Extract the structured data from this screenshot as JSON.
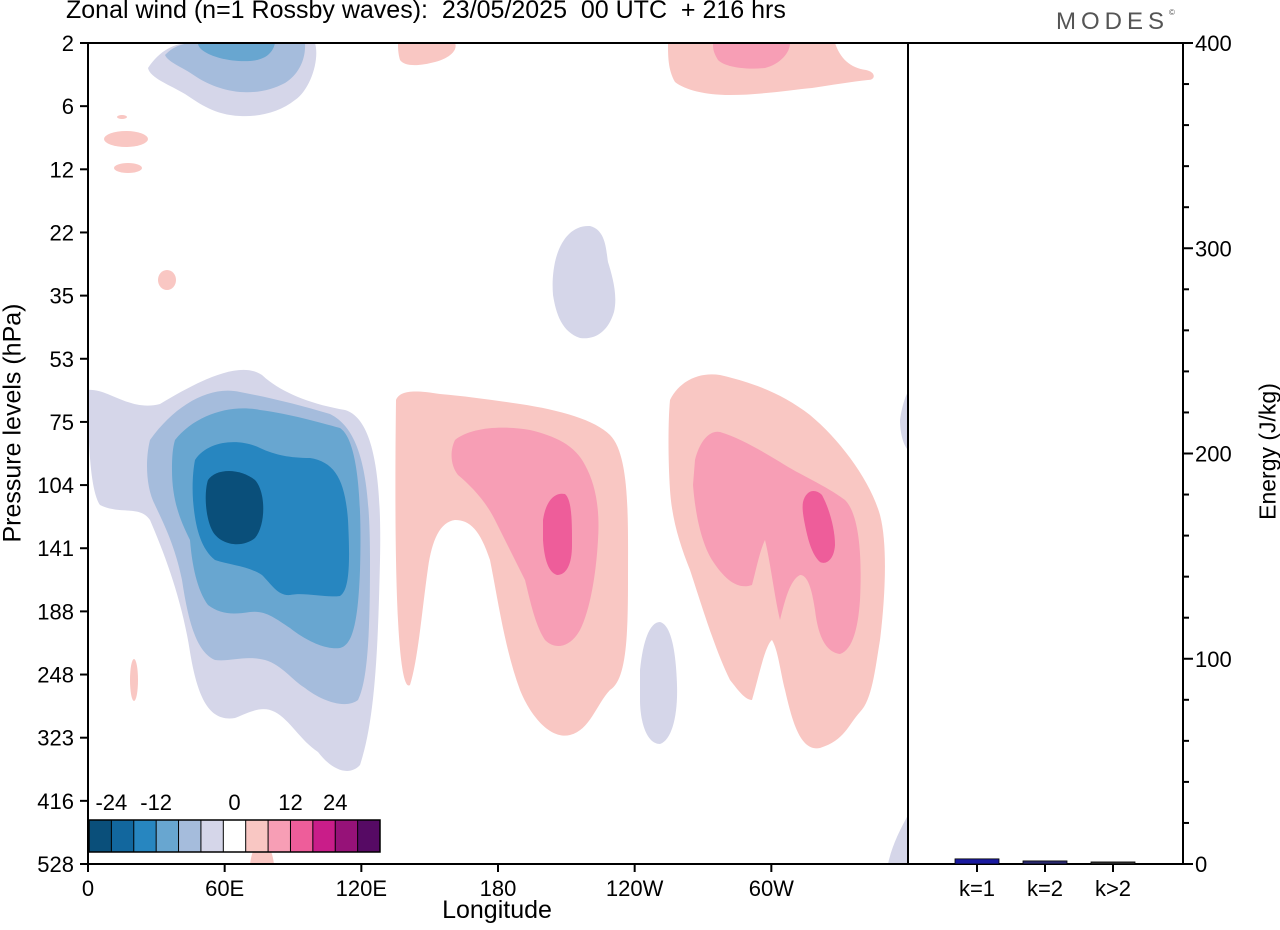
{
  "header": {
    "title": "Zonal wind (n=1 Rossby waves):  23/05/2025  00 UTC  + 216 hrs",
    "brand": "MODES",
    "brand_mark": "©"
  },
  "chart_data": [
    {
      "type": "heatmap",
      "title": "Zonal wind (n=1 Rossby waves):  23/05/2025  00 UTC  + 216 hrs",
      "xlabel": "Longitude",
      "ylabel": "Pressure levels (hPa)",
      "x_ticks": [
        "0",
        "60E",
        "120E",
        "180",
        "120W",
        "60W"
      ],
      "x_tick_values": [
        0,
        60,
        120,
        180,
        240,
        300
      ],
      "xlim": [
        0,
        360
      ],
      "y_ticks": [
        "2",
        "6",
        "12",
        "22",
        "35",
        "53",
        "75",
        "104",
        "141",
        "188",
        "248",
        "323",
        "416",
        "528"
      ],
      "colorbar": {
        "tick_labels": [
          "-24",
          "-12",
          "0",
          "12",
          "24"
        ],
        "levels": [
          -30,
          -24,
          -18,
          -12,
          -6,
          -3,
          3,
          6,
          12,
          18,
          24,
          30
        ],
        "colors": [
          "#0a4f7a",
          "#12679e",
          "#2786c0",
          "#68a6d0",
          "#a5bcdc",
          "#d5d6e9",
          "#ffffff",
          "#f9c7c3",
          "#f79eb5",
          "#ee5d9a",
          "#c91d89",
          "#961278",
          "#560a64"
        ]
      },
      "anomalies": [
        {
          "sign": "negative",
          "lon_range": [
            10,
            128
          ],
          "pressure_range": [
            53,
            450
          ],
          "peak_value": -27,
          "peak_lon": 63,
          "peak_pressure": 120
        },
        {
          "sign": "negative",
          "lon_range": [
            27,
            97
          ],
          "pressure_range": [
            2,
            6
          ],
          "peak_value": -15
        },
        {
          "sign": "negative",
          "lon_range": [
            203,
            232
          ],
          "pressure_range": [
            20,
            45
          ],
          "peak_value": -5
        },
        {
          "sign": "negative",
          "lon_range": [
            242,
            258
          ],
          "pressure_range": [
            190,
            330
          ],
          "peak_value": -5
        },
        {
          "sign": "positive",
          "lon_range": [
            135,
            240
          ],
          "pressure_range": [
            70,
            300
          ],
          "peak_value": 20,
          "peak_lon": 206,
          "peak_pressure": 140
        },
        {
          "sign": "positive",
          "lon_range": [
            265,
            350
          ],
          "pressure_range": [
            65,
            340
          ],
          "peak_value": 20,
          "peak_lon": 322,
          "peak_pressure": 130
        },
        {
          "sign": "positive",
          "lon_range": [
            270,
            345
          ],
          "pressure_range": [
            2,
            5
          ],
          "peak_value": 9
        }
      ]
    },
    {
      "type": "bar",
      "ylabel": "Energy (J/kg)",
      "categories": [
        "k=1",
        "k=2",
        "k>2"
      ],
      "values": [
        2.5,
        1.5,
        1
      ],
      "ylim": [
        0,
        400
      ],
      "y_ticks": [
        "0",
        "100",
        "200",
        "300",
        "400"
      ],
      "colors": [
        "#1a1aa0",
        "#2a2a70",
        "#333333"
      ]
    }
  ]
}
